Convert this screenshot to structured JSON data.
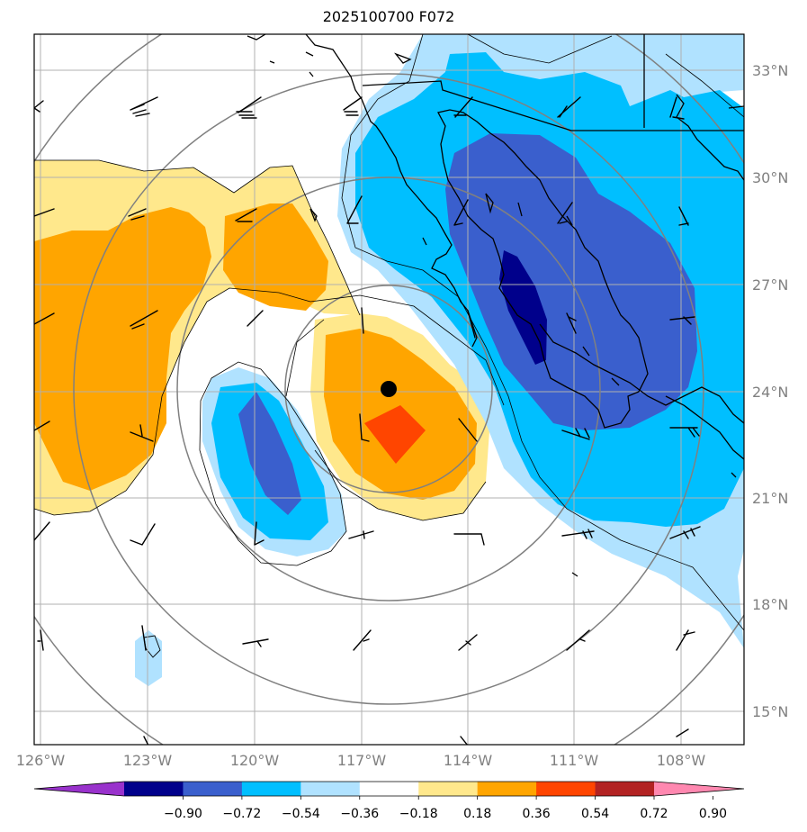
{
  "title": "2025100700 F072",
  "lat_labels": [
    "33°N",
    "30°N",
    "27°N",
    "24°N",
    "21°N",
    "18°N",
    "15°N"
  ],
  "lon_labels": [
    "126°W",
    "123°W",
    "120°W",
    "117°W",
    "114°W",
    "111°W",
    "108°W"
  ],
  "colorbar": {
    "tick_labels": [
      "−0.90",
      "−0.72",
      "−0.54",
      "−0.36",
      "−0.18",
      "0.18",
      "0.36",
      "0.54",
      "0.72",
      "0.90"
    ],
    "colors": [
      "#9932cc",
      "#00008b",
      "#3a5fcd",
      "#00bfff",
      "#b0e2ff",
      "#ffffff",
      "#ffe88c",
      "#ffa500",
      "#ff4500",
      "#b22222",
      "#ff88b0"
    ]
  },
  "storm_center": {
    "lon": "116.3°W",
    "lat": "24.0°N"
  }
}
